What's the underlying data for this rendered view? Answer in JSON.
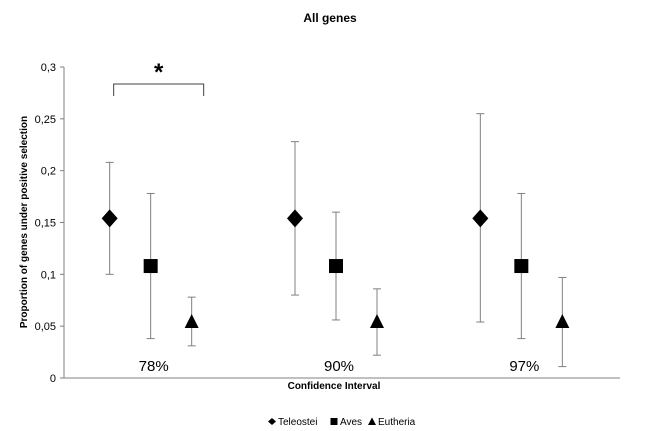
{
  "chart_data": {
    "type": "scatter",
    "title": "All genes",
    "xlabel": "Confidence Interval",
    "ylabel": "Proportion of genes under positive selection",
    "ylim": [
      0,
      0.3
    ],
    "yticks": [
      "0",
      "0,05",
      "0,1",
      "0,15",
      "0,2",
      "0,25",
      "0,3"
    ],
    "categories": [
      "78%",
      "90%",
      "97%"
    ],
    "series": [
      {
        "name": "Teleostei",
        "marker": "diamond",
        "values": [
          0.154,
          0.154,
          0.154
        ],
        "lower": [
          0.1,
          0.08,
          0.054
        ],
        "upper": [
          0.208,
          0.228,
          0.255
        ]
      },
      {
        "name": "Aves",
        "marker": "square",
        "values": [
          0.108,
          0.108,
          0.108
        ],
        "lower": [
          0.038,
          0.056,
          0.038
        ],
        "upper": [
          0.178,
          0.16,
          0.178
        ]
      },
      {
        "name": "Eutheria",
        "marker": "triangle",
        "values": [
          0.054,
          0.054,
          0.054
        ],
        "lower": [
          0.031,
          0.022,
          0.011
        ],
        "upper": [
          0.078,
          0.086,
          0.097
        ]
      }
    ],
    "annotation": {
      "text": "*",
      "between": [
        "Teleostei",
        "Eutheria"
      ],
      "category": "78%"
    },
    "legend_position": "bottom",
    "grid": false
  },
  "colors": {
    "markers": "#000000",
    "errorbars": "#808080",
    "axis": "#808080"
  }
}
